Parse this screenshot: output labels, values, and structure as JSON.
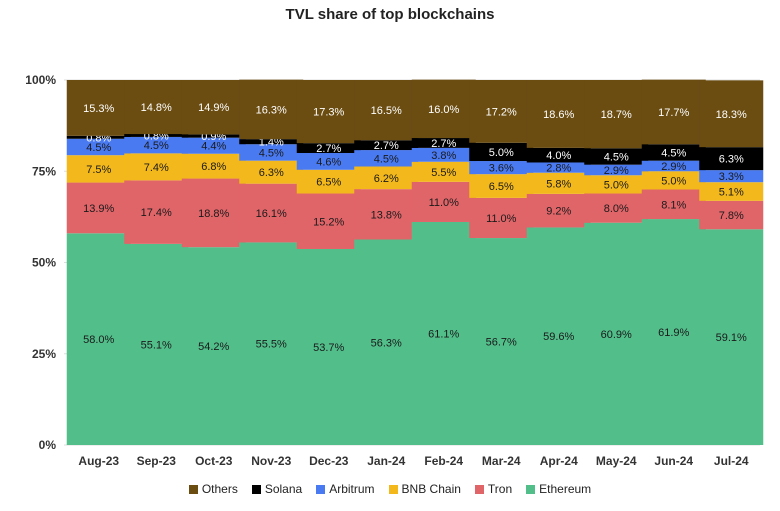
{
  "chart_data": {
    "type": "bar",
    "stacked": true,
    "title": "TVL share of top blockchains",
    "categories": [
      "Aug-23",
      "Sep-23",
      "Oct-23",
      "Nov-23",
      "Dec-23",
      "Jan-24",
      "Feb-24",
      "Mar-24",
      "Apr-24",
      "May-24",
      "Jun-24",
      "Jul-24"
    ],
    "y_ticks": [
      "0%",
      "25%",
      "50%",
      "75%",
      "100%"
    ],
    "ylim": [
      0,
      100
    ],
    "legend_position": "bottom",
    "series": [
      {
        "name": "Ethereum",
        "color": "#52bf8b",
        "values": [
          58.0,
          55.1,
          54.2,
          55.5,
          53.7,
          56.3,
          61.1,
          56.7,
          59.6,
          60.9,
          61.9,
          59.1
        ],
        "labels": [
          "58.0%",
          "55.1%",
          "54.2%",
          "55.5%",
          "53.7%",
          "56.3%",
          "61.1%",
          "56.7%",
          "59.6%",
          "60.9%",
          "61.9%",
          "59.1%"
        ]
      },
      {
        "name": "Tron",
        "color": "#e06569",
        "values": [
          13.9,
          17.4,
          18.8,
          16.1,
          15.2,
          13.8,
          11.0,
          11.0,
          9.2,
          8.0,
          8.1,
          7.8
        ],
        "labels": [
          "13.9%",
          "17.4%",
          "18.8%",
          "16.1%",
          "15.2%",
          "13.8%",
          "11.0%",
          "11.0%",
          "9.2%",
          "8.0%",
          "8.1%",
          "7.8%"
        ]
      },
      {
        "name": "BNB Chain",
        "color": "#f3b81b",
        "values": [
          7.5,
          7.4,
          6.8,
          6.3,
          6.5,
          6.2,
          5.5,
          6.5,
          5.8,
          5.0,
          5.0,
          5.1
        ],
        "labels": [
          "7.5%",
          "7.4%",
          "6.8%",
          "6.3%",
          "6.5%",
          "6.2%",
          "5.5%",
          "6.5%",
          "5.8%",
          "5.0%",
          "5.0%",
          "5.1%"
        ]
      },
      {
        "name": "Arbitrum",
        "color": "#4a7af2",
        "values": [
          4.5,
          4.5,
          4.4,
          4.5,
          4.6,
          4.5,
          3.8,
          3.6,
          2.8,
          2.9,
          2.9,
          3.3
        ],
        "labels": [
          "4.5%",
          "4.5%",
          "4.4%",
          "4.5%",
          "4.6%",
          "4.5%",
          "3.8%",
          "3.6%",
          "2.8%",
          "2.9%",
          "2.9%",
          "3.3%"
        ]
      },
      {
        "name": "Solana",
        "color": "#000000",
        "values": [
          0.8,
          0.8,
          0.9,
          1.4,
          2.7,
          2.7,
          2.7,
          5.0,
          4.0,
          4.5,
          4.5,
          6.3
        ],
        "labels": [
          "0.8%",
          "0.8%",
          "0.9%",
          "1.4%",
          "2.7%",
          "2.7%",
          "2.7%",
          "5.0%",
          "4.0%",
          "4.5%",
          "4.5%",
          "6.3%"
        ]
      },
      {
        "name": "Others",
        "color": "#6b4d12",
        "values": [
          15.3,
          14.8,
          14.9,
          16.3,
          17.3,
          16.5,
          16.0,
          17.2,
          18.6,
          18.7,
          17.7,
          18.3
        ],
        "labels": [
          "15.3%",
          "14.8%",
          "14.9%",
          "16.3%",
          "17.3%",
          "16.5%",
          "16.0%",
          "17.2%",
          "18.6%",
          "18.7%",
          "17.7%",
          "18.3%"
        ]
      }
    ],
    "legend_order": [
      "Others",
      "Solana",
      "Arbitrum",
      "BNB Chain",
      "Tron",
      "Ethereum"
    ]
  }
}
